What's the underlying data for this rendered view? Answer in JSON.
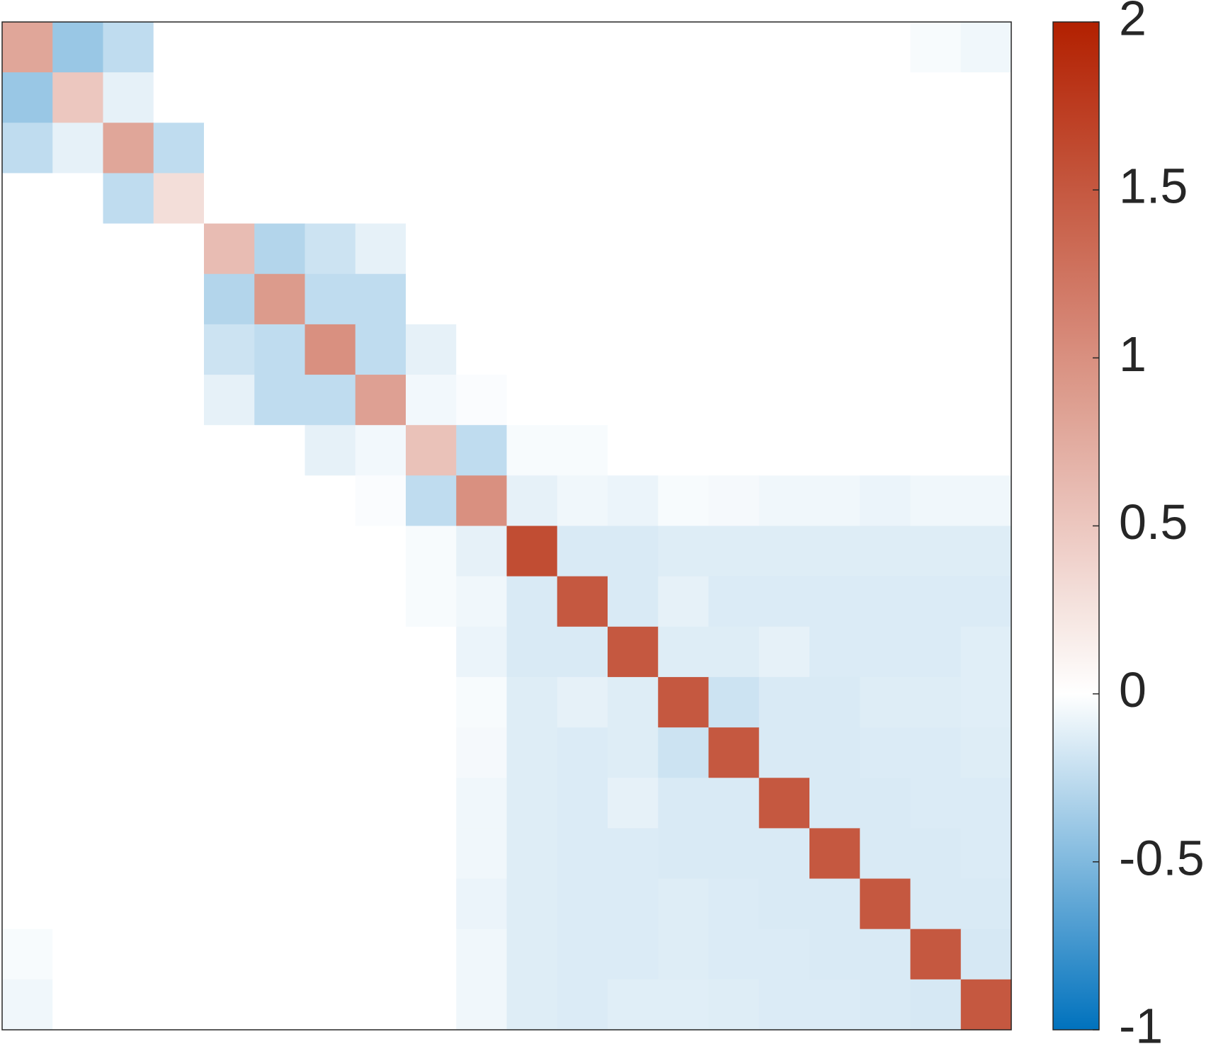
{
  "chart_data": {
    "type": "heatmap",
    "z": [
      [
        0.8,
        -0.4,
        -0.25,
        0,
        0,
        0,
        0,
        0,
        0,
        0,
        0,
        0,
        0,
        0,
        0,
        0,
        0,
        0,
        -0.03,
        -0.06
      ],
      [
        -0.4,
        0.5,
        -0.1,
        0,
        0,
        0,
        0,
        0,
        0,
        0,
        0,
        0,
        0,
        0,
        0,
        0,
        0,
        0,
        0,
        0
      ],
      [
        -0.25,
        -0.1,
        0.8,
        -0.25,
        0,
        0,
        0,
        0,
        0,
        0,
        0,
        0,
        0,
        0,
        0,
        0,
        0,
        0,
        0,
        0
      ],
      [
        0,
        0,
        -0.25,
        0.3,
        0,
        0,
        0,
        0,
        0,
        0,
        0,
        0,
        0,
        0,
        0,
        0,
        0,
        0,
        0,
        0
      ],
      [
        0,
        0,
        0,
        0,
        0.6,
        -0.3,
        -0.2,
        -0.1,
        0,
        0,
        0,
        0,
        0,
        0,
        0,
        0,
        0,
        0,
        0,
        0
      ],
      [
        0,
        0,
        0,
        0,
        -0.3,
        0.9,
        -0.25,
        -0.25,
        0,
        0,
        0,
        0,
        0,
        0,
        0,
        0,
        0,
        0,
        0,
        0
      ],
      [
        0,
        0,
        0,
        0,
        -0.2,
        -0.25,
        1.0,
        -0.25,
        -0.1,
        0,
        0,
        0,
        0,
        0,
        0,
        0,
        0,
        0,
        0,
        0
      ],
      [
        0,
        0,
        0,
        0,
        -0.1,
        -0.25,
        -0.25,
        0.85,
        -0.05,
        -0.02,
        0,
        0,
        0,
        0,
        0,
        0,
        0,
        0,
        0,
        0
      ],
      [
        0,
        0,
        0,
        0,
        0,
        0,
        -0.1,
        -0.05,
        0.55,
        -0.25,
        -0.03,
        -0.03,
        0,
        0,
        0,
        0,
        0,
        0,
        0,
        0
      ],
      [
        0,
        0,
        0,
        0,
        0,
        0,
        0,
        -0.02,
        -0.25,
        1.0,
        -0.1,
        -0.06,
        -0.08,
        -0.03,
        -0.04,
        -0.06,
        -0.06,
        -0.08,
        -0.06,
        -0.06
      ],
      [
        0,
        0,
        0,
        0,
        0,
        0,
        0,
        0,
        -0.03,
        -0.1,
        1.6,
        -0.15,
        -0.15,
        -0.13,
        -0.13,
        -0.13,
        -0.13,
        -0.13,
        -0.13,
        -0.13
      ],
      [
        0,
        0,
        0,
        0,
        0,
        0,
        0,
        0,
        -0.03,
        -0.06,
        -0.15,
        1.5,
        -0.15,
        -0.1,
        -0.14,
        -0.14,
        -0.14,
        -0.14,
        -0.14,
        -0.14
      ],
      [
        0,
        0,
        0,
        0,
        0,
        0,
        0,
        0,
        0,
        -0.08,
        -0.15,
        -0.15,
        1.5,
        -0.13,
        -0.13,
        -0.1,
        -0.14,
        -0.14,
        -0.14,
        -0.12
      ],
      [
        0,
        0,
        0,
        0,
        0,
        0,
        0,
        0,
        0,
        -0.03,
        -0.13,
        -0.1,
        -0.13,
        1.5,
        -0.2,
        -0.15,
        -0.15,
        -0.13,
        -0.13,
        -0.12
      ],
      [
        0,
        0,
        0,
        0,
        0,
        0,
        0,
        0,
        0,
        -0.04,
        -0.13,
        -0.14,
        -0.13,
        -0.2,
        1.5,
        -0.15,
        -0.15,
        -0.14,
        -0.14,
        -0.13
      ],
      [
        0,
        0,
        0,
        0,
        0,
        0,
        0,
        0,
        0,
        -0.06,
        -0.13,
        -0.14,
        -0.1,
        -0.15,
        -0.15,
        1.5,
        -0.15,
        -0.15,
        -0.14,
        -0.14
      ],
      [
        0,
        0,
        0,
        0,
        0,
        0,
        0,
        0,
        0,
        -0.06,
        -0.13,
        -0.14,
        -0.14,
        -0.15,
        -0.15,
        -0.15,
        1.5,
        -0.15,
        -0.15,
        -0.14
      ],
      [
        0,
        0,
        0,
        0,
        0,
        0,
        0,
        0,
        0,
        -0.08,
        -0.13,
        -0.14,
        -0.14,
        -0.13,
        -0.14,
        -0.15,
        -0.15,
        1.5,
        -0.15,
        -0.15
      ],
      [
        -0.03,
        0,
        0,
        0,
        0,
        0,
        0,
        0,
        0,
        -0.06,
        -0.13,
        -0.14,
        -0.14,
        -0.13,
        -0.14,
        -0.14,
        -0.15,
        -0.15,
        1.5,
        -0.16
      ],
      [
        -0.06,
        0,
        0,
        0,
        0,
        0,
        0,
        0,
        0,
        -0.06,
        -0.13,
        -0.14,
        -0.12,
        -0.12,
        -0.13,
        -0.14,
        -0.14,
        -0.15,
        -0.16,
        1.5
      ]
    ],
    "clim": [
      -1,
      2
    ],
    "colorbar_ticks": [
      -1,
      -0.5,
      0,
      0.5,
      1,
      1.5,
      2
    ],
    "colormap": [
      "#0072bd",
      "#ffffff",
      "#b22000"
    ]
  }
}
